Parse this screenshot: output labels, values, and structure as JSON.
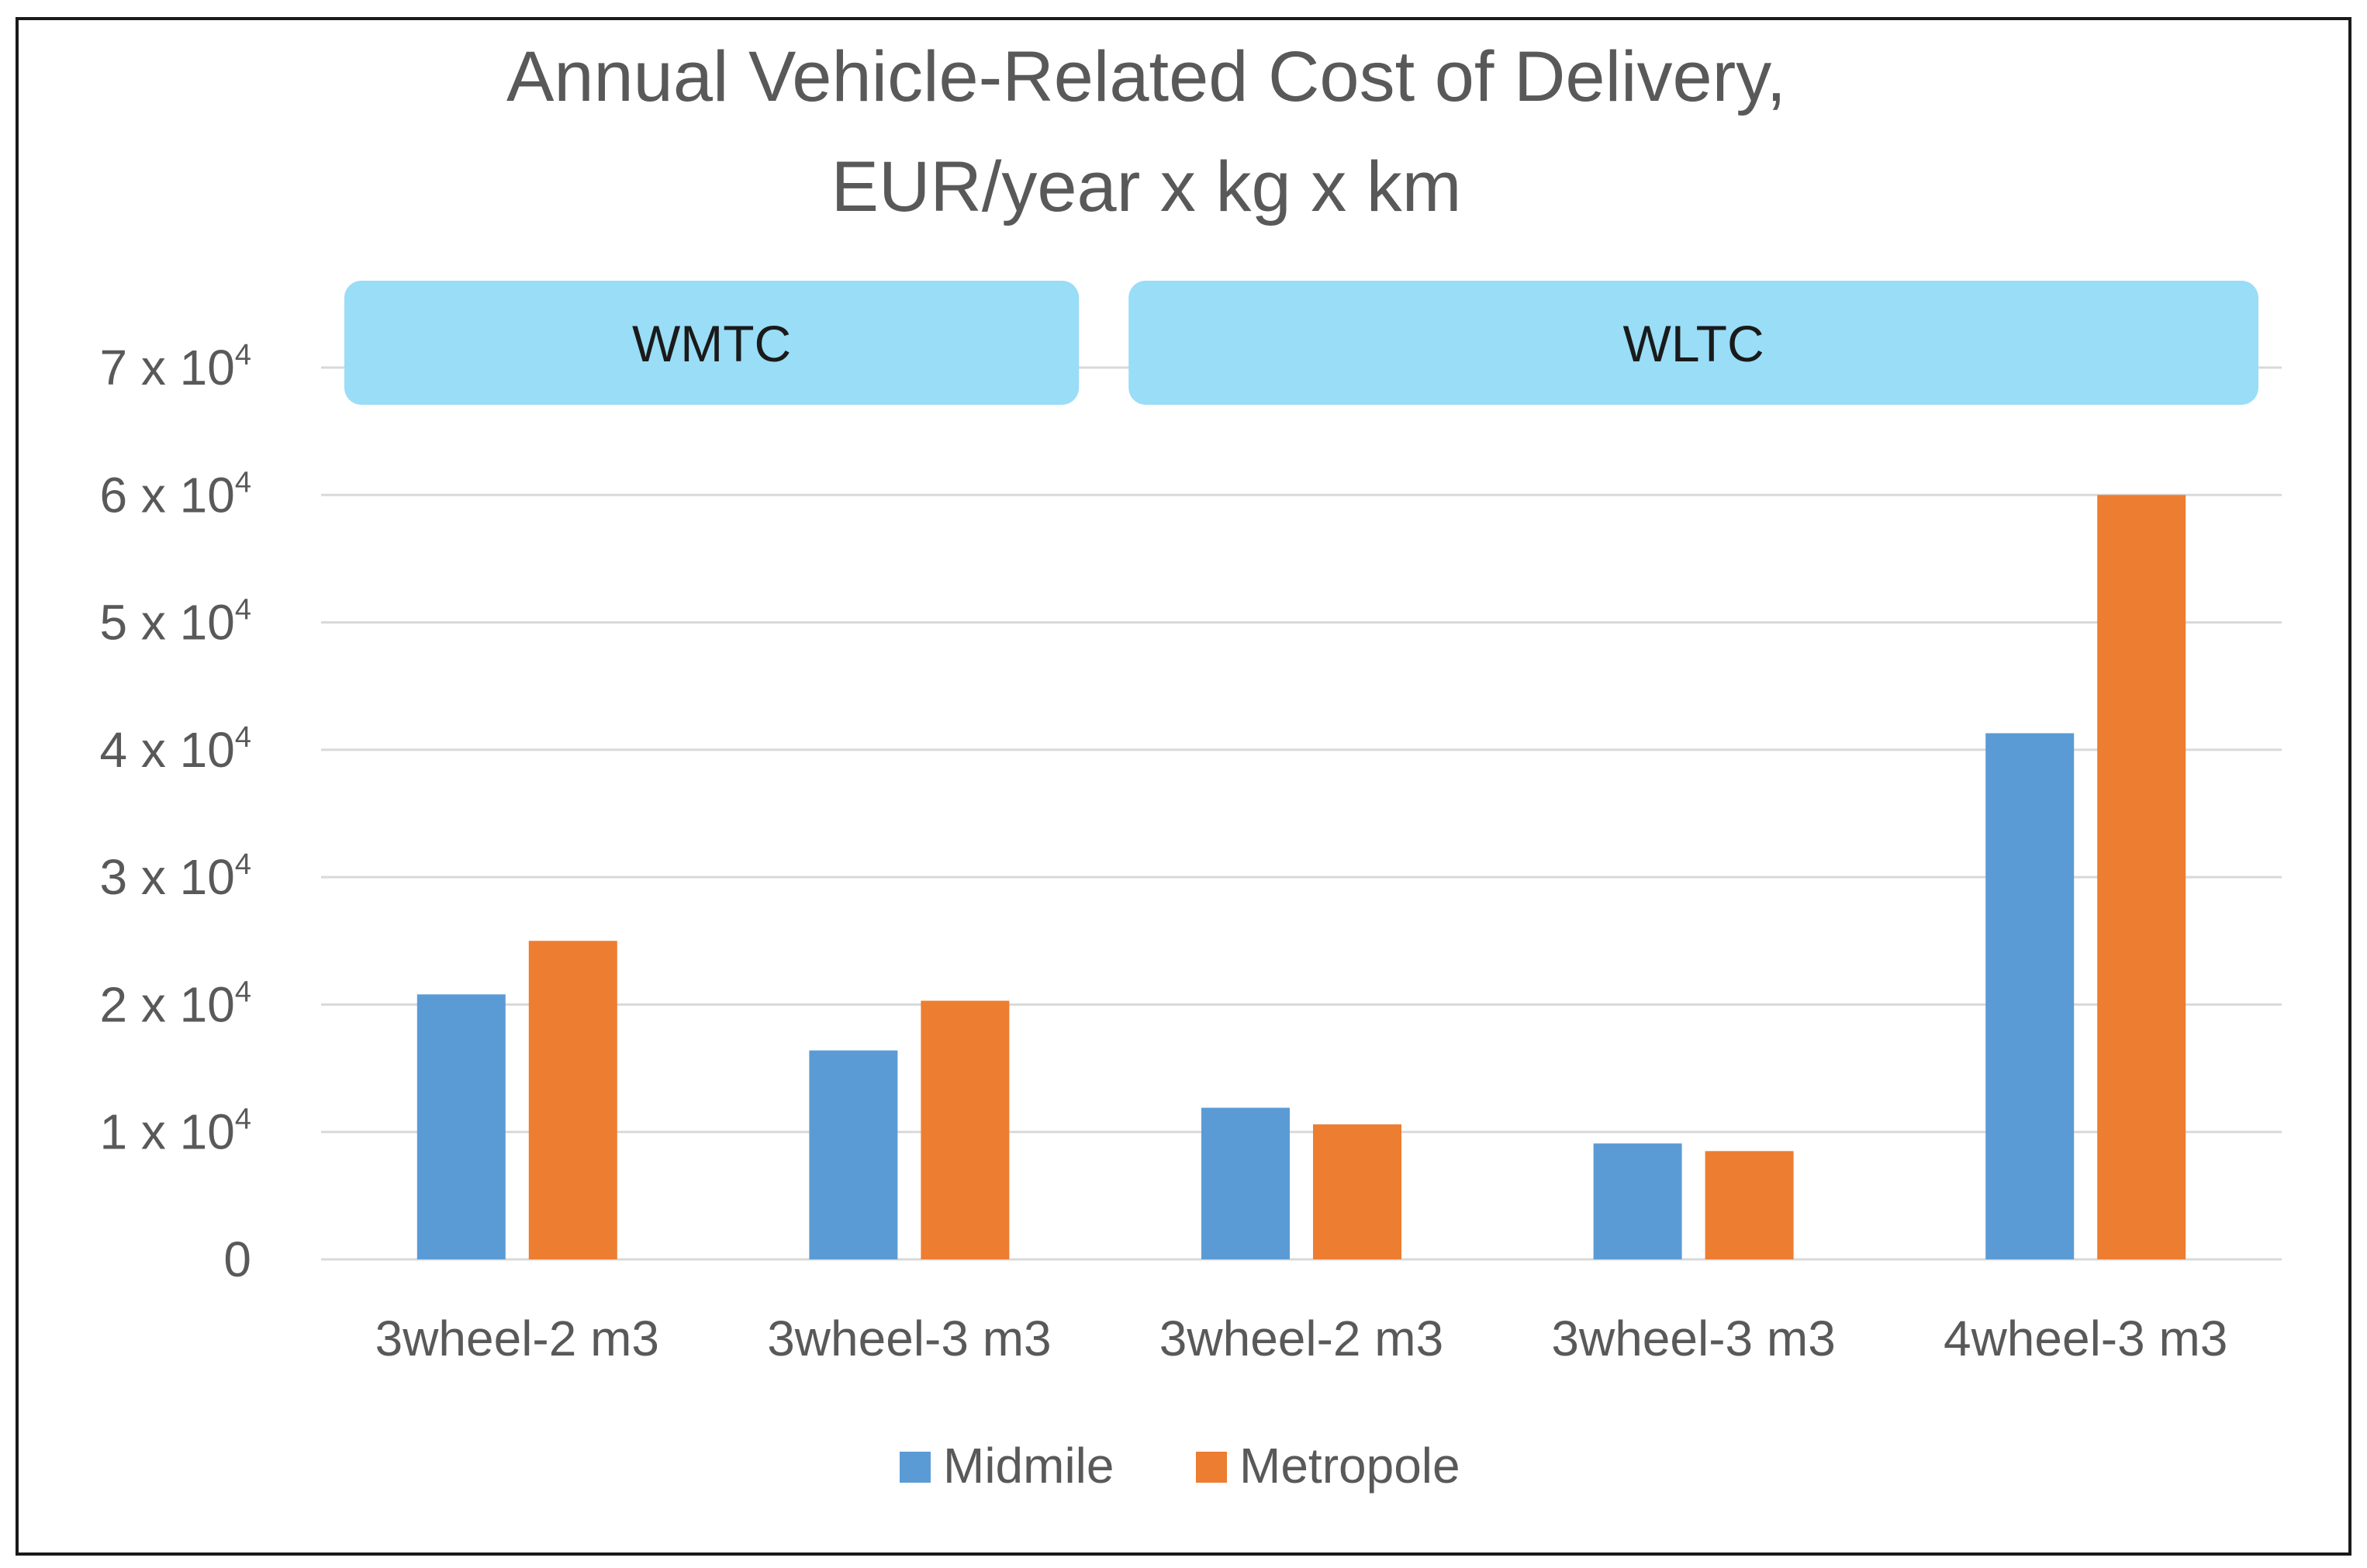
{
  "chart_data": {
    "type": "bar",
    "title": [
      "Annual Vehicle-Related Cost of Delivery,",
      "EUR/year x kg x km"
    ],
    "categories": [
      "3wheel-2 m3",
      "3wheel-3 m3",
      "3wheel-2 m3",
      "3wheel-3 m3",
      "4wheel-3 m3"
    ],
    "series": [
      {
        "name": "Midmile",
        "color": "#5B9BD5",
        "values": [
          20800,
          16400,
          11900,
          9100,
          41300
        ]
      },
      {
        "name": "Metropole",
        "color": "#ED7D31",
        "values": [
          25000,
          20300,
          10600,
          8500,
          60000
        ]
      }
    ],
    "groups": [
      {
        "label": "WMTC",
        "from": 0,
        "to": 1,
        "color": "#99DDF7"
      },
      {
        "label": "WLTC",
        "from": 2,
        "to": 4,
        "color": "#99DDF7"
      }
    ],
    "ylim": [
      0,
      70000
    ],
    "yticks": [
      {
        "value": 0,
        "label": "0"
      },
      {
        "value": 10000,
        "label": "1 x 10",
        "sup": "4"
      },
      {
        "value": 20000,
        "label": "2 x 10",
        "sup": "4"
      },
      {
        "value": 30000,
        "label": "3 x 10",
        "sup": "4"
      },
      {
        "value": 40000,
        "label": "4 x 10",
        "sup": "4"
      },
      {
        "value": 50000,
        "label": "5 x 10",
        "sup": "4"
      },
      {
        "value": 60000,
        "label": "6 x 10",
        "sup": "4"
      },
      {
        "value": 70000,
        "label": "7 x 10",
        "sup": "4"
      }
    ],
    "xlabel": "",
    "ylabel": "",
    "grid": true,
    "legend_position": "bottom"
  }
}
